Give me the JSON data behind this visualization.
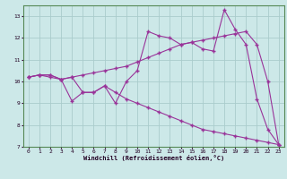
{
  "xlabel": "Windchill (Refroidissement éolien,°C)",
  "bg_color": "#cce8e8",
  "grid_color": "#aacccc",
  "line_color": "#993399",
  "xlim": [
    -0.5,
    23.5
  ],
  "ylim": [
    7,
    13.5
  ],
  "xticks": [
    0,
    1,
    2,
    3,
    4,
    5,
    6,
    7,
    8,
    9,
    10,
    11,
    12,
    13,
    14,
    15,
    16,
    17,
    18,
    19,
    20,
    21,
    22,
    23
  ],
  "yticks": [
    7,
    8,
    9,
    10,
    11,
    12,
    13
  ],
  "line1_x": [
    0,
    1,
    2,
    3,
    4,
    5,
    6,
    7,
    8,
    9,
    10,
    11,
    12,
    13,
    14,
    15,
    16,
    17,
    18,
    19,
    20,
    21,
    22,
    23
  ],
  "line1_y": [
    10.2,
    10.3,
    10.3,
    10.1,
    10.2,
    9.5,
    9.5,
    9.8,
    9.0,
    10.0,
    10.5,
    12.3,
    12.1,
    12.0,
    11.7,
    11.8,
    11.5,
    11.4,
    13.3,
    12.4,
    11.7,
    9.2,
    7.8,
    7.1
  ],
  "line2_x": [
    0,
    1,
    2,
    3,
    4,
    5,
    6,
    7,
    8,
    9,
    10,
    11,
    12,
    13,
    14,
    15,
    16,
    17,
    18,
    19,
    20,
    21,
    22,
    23
  ],
  "line2_y": [
    10.2,
    10.3,
    10.3,
    10.1,
    10.2,
    10.3,
    10.4,
    10.5,
    10.6,
    10.7,
    10.9,
    11.1,
    11.3,
    11.5,
    11.7,
    11.8,
    11.9,
    12.0,
    12.1,
    12.2,
    12.3,
    11.7,
    10.0,
    7.1
  ],
  "line3_x": [
    0,
    1,
    2,
    3,
    4,
    5,
    6,
    7,
    8,
    9,
    10,
    11,
    12,
    13,
    14,
    15,
    16,
    17,
    18,
    19,
    20,
    21,
    22,
    23
  ],
  "line3_y": [
    10.2,
    10.3,
    10.2,
    10.1,
    9.1,
    9.5,
    9.5,
    9.8,
    9.5,
    9.2,
    9.0,
    8.8,
    8.6,
    8.4,
    8.2,
    8.0,
    7.8,
    7.7,
    7.6,
    7.5,
    7.4,
    7.3,
    7.2,
    7.1
  ]
}
